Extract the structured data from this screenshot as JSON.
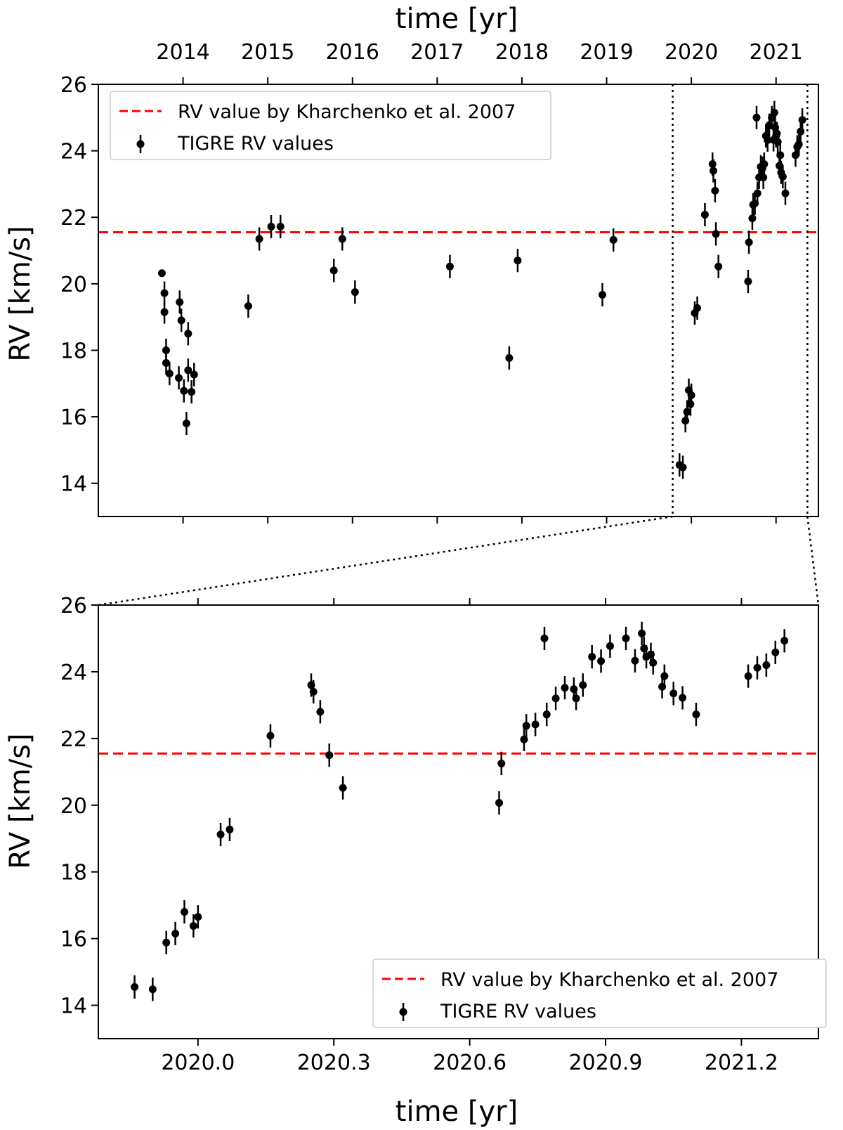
{
  "chart_data": [
    {
      "id": "top",
      "type": "scatter",
      "xlabel_top": "time [yr]",
      "ylabel": "RV [km/s]",
      "xlim": [
        2013.0,
        2021.5
      ],
      "ylim": [
        13,
        26
      ],
      "yticks": [
        14,
        16,
        18,
        20,
        22,
        24,
        26
      ],
      "xticks_top": [
        {
          "value": 2014,
          "label": "2014"
        },
        {
          "value": 2015,
          "label": "2015"
        },
        {
          "value": 2016,
          "label": "2016"
        },
        {
          "value": 2017,
          "label": "2017"
        },
        {
          "value": 2018,
          "label": "2018"
        },
        {
          "value": 2019,
          "label": "2019"
        },
        {
          "value": 2020,
          "label": "2020"
        },
        {
          "value": 2021,
          "label": "2021"
        }
      ],
      "legend_position": "upper-left",
      "reference_line": {
        "name": "RV value by Kharchenko et al. 2007",
        "y": 21.55,
        "color": "#ff0000",
        "style": "dashed"
      },
      "zoom_window": [
        2019.78,
        2021.37
      ],
      "series": [
        {
          "name": "TIGRE RV values",
          "color": "#000000",
          "points": [
            [
              2013.75,
              20.32,
              0.1
            ],
            [
              2013.78,
              19.72,
              0.35
            ],
            [
              2013.78,
              19.15,
              0.35
            ],
            [
              2013.8,
              18.0,
              0.35
            ],
            [
              2013.8,
              17.62,
              0.35
            ],
            [
              2013.84,
              17.3,
              0.35
            ],
            [
              2013.95,
              17.17,
              0.35
            ],
            [
              2013.96,
              19.45,
              0.35
            ],
            [
              2013.98,
              18.9,
              0.35
            ],
            [
              2014.01,
              16.78,
              0.35
            ],
            [
              2014.04,
              15.8,
              0.35
            ],
            [
              2014.06,
              18.5,
              0.35
            ],
            [
              2014.06,
              17.4,
              0.35
            ],
            [
              2014.1,
              16.75,
              0.35
            ],
            [
              2014.13,
              17.27,
              0.35
            ],
            [
              2014.77,
              19.33,
              0.35
            ],
            [
              2014.9,
              21.35,
              0.35
            ],
            [
              2015.04,
              21.72,
              0.35
            ],
            [
              2015.15,
              21.72,
              0.35
            ],
            [
              2015.78,
              20.4,
              0.35
            ],
            [
              2015.88,
              21.35,
              0.35
            ],
            [
              2016.03,
              19.75,
              0.35
            ],
            [
              2017.15,
              20.52,
              0.35
            ],
            [
              2017.85,
              17.77,
              0.35
            ],
            [
              2017.95,
              20.7,
              0.35
            ],
            [
              2018.95,
              19.67,
              0.35
            ],
            [
              2019.08,
              21.32,
              0.35
            ],
            [
              2019.86,
              14.55,
              0.35
            ],
            [
              2019.9,
              14.48,
              0.35
            ],
            [
              2019.93,
              15.88,
              0.35
            ],
            [
              2019.95,
              16.15,
              0.35
            ],
            [
              2019.97,
              16.8,
              0.35
            ],
            [
              2019.99,
              16.38,
              0.35
            ],
            [
              2020.0,
              16.65,
              0.35
            ],
            [
              2020.04,
              19.12,
              0.35
            ],
            [
              2020.07,
              19.27,
              0.35
            ],
            [
              2020.16,
              22.08,
              0.35
            ],
            [
              2020.25,
              23.6,
              0.35
            ],
            [
              2020.26,
              23.4,
              0.35
            ],
            [
              2020.28,
              22.8,
              0.35
            ],
            [
              2020.29,
              21.5,
              0.35
            ],
            [
              2020.32,
              20.52,
              0.35
            ],
            [
              2020.67,
              20.07,
              0.35
            ],
            [
              2020.68,
              21.25,
              0.35
            ],
            [
              2020.72,
              21.97,
              0.35
            ],
            [
              2020.73,
              22.38,
              0.35
            ],
            [
              2020.75,
              22.42,
              0.35
            ],
            [
              2020.77,
              25.0,
              0.35
            ],
            [
              2020.78,
              22.72,
              0.35
            ],
            [
              2020.8,
              23.2,
              0.35
            ],
            [
              2020.82,
              23.52,
              0.35
            ],
            [
              2020.84,
              23.48,
              0.35
            ],
            [
              2020.85,
              23.2,
              0.35
            ],
            [
              2020.86,
              23.6,
              0.35
            ],
            [
              2020.88,
              24.45,
              0.35
            ],
            [
              2020.9,
              24.32,
              0.35
            ],
            [
              2020.92,
              24.77,
              0.35
            ],
            [
              2020.95,
              25.0,
              0.35
            ],
            [
              2020.97,
              24.33,
              0.35
            ],
            [
              2020.98,
              25.15,
              0.35
            ],
            [
              2020.99,
              24.7,
              0.35
            ],
            [
              2021.0,
              24.45,
              0.35
            ],
            [
              2021.01,
              24.52,
              0.35
            ],
            [
              2021.02,
              24.27,
              0.35
            ],
            [
              2021.04,
              23.55,
              0.35
            ],
            [
              2021.05,
              23.87,
              0.35
            ],
            [
              2021.06,
              23.35,
              0.35
            ],
            [
              2021.08,
              23.22,
              0.35
            ],
            [
              2021.11,
              22.72,
              0.35
            ],
            [
              2021.23,
              23.87,
              0.35
            ],
            [
              2021.25,
              24.12,
              0.35
            ],
            [
              2021.27,
              24.2,
              0.35
            ],
            [
              2021.29,
              24.58,
              0.35
            ],
            [
              2021.31,
              24.93,
              0.35
            ]
          ]
        }
      ]
    },
    {
      "id": "bottom",
      "type": "scatter",
      "xlabel": "time [yr]",
      "ylabel": "RV [km/s]",
      "xlim": [
        2019.78,
        2021.37
      ],
      "ylim": [
        13,
        26
      ],
      "yticks": [
        14,
        16,
        18,
        20,
        22,
        24,
        26
      ],
      "xticks": [
        {
          "value": 2020.0,
          "label": "2020.0"
        },
        {
          "value": 2020.3,
          "label": "2020.3"
        },
        {
          "value": 2020.6,
          "label": "2020.6"
        },
        {
          "value": 2020.9,
          "label": "2020.9"
        },
        {
          "value": 2021.2,
          "label": "2021.2"
        }
      ],
      "legend_position": "lower-right",
      "reference_line": {
        "name": "RV value by Kharchenko et al. 2007",
        "y": 21.55,
        "color": "#ff0000",
        "style": "dashed"
      },
      "series": [
        {
          "name": "TIGRE RV values",
          "color": "#000000",
          "points": [
            [
              2019.86,
              14.55,
              0.35
            ],
            [
              2019.9,
              14.48,
              0.35
            ],
            [
              2019.93,
              15.88,
              0.35
            ],
            [
              2019.95,
              16.15,
              0.35
            ],
            [
              2019.97,
              16.8,
              0.35
            ],
            [
              2019.99,
              16.38,
              0.35
            ],
            [
              2020.0,
              16.65,
              0.35
            ],
            [
              2020.05,
              19.12,
              0.35
            ],
            [
              2020.07,
              19.27,
              0.35
            ],
            [
              2020.16,
              22.08,
              0.35
            ],
            [
              2020.25,
              23.6,
              0.35
            ],
            [
              2020.255,
              23.4,
              0.35
            ],
            [
              2020.27,
              22.8,
              0.35
            ],
            [
              2020.29,
              21.5,
              0.35
            ],
            [
              2020.32,
              20.52,
              0.35
            ],
            [
              2020.665,
              20.07,
              0.35
            ],
            [
              2020.67,
              21.25,
              0.35
            ],
            [
              2020.72,
              21.97,
              0.35
            ],
            [
              2020.725,
              22.38,
              0.35
            ],
            [
              2020.745,
              22.42,
              0.35
            ],
            [
              2020.765,
              25.0,
              0.35
            ],
            [
              2020.77,
              22.72,
              0.35
            ],
            [
              2020.79,
              23.2,
              0.35
            ],
            [
              2020.81,
              23.52,
              0.35
            ],
            [
              2020.83,
              23.48,
              0.35
            ],
            [
              2020.835,
              23.2,
              0.35
            ],
            [
              2020.85,
              23.6,
              0.35
            ],
            [
              2020.87,
              24.45,
              0.35
            ],
            [
              2020.89,
              24.32,
              0.35
            ],
            [
              2020.91,
              24.77,
              0.35
            ],
            [
              2020.945,
              25.0,
              0.35
            ],
            [
              2020.965,
              24.33,
              0.35
            ],
            [
              2020.98,
              25.15,
              0.35
            ],
            [
              2020.985,
              24.7,
              0.35
            ],
            [
              2020.99,
              24.45,
              0.35
            ],
            [
              2021.0,
              24.52,
              0.35
            ],
            [
              2021.005,
              24.27,
              0.35
            ],
            [
              2021.025,
              23.55,
              0.35
            ],
            [
              2021.03,
              23.87,
              0.35
            ],
            [
              2021.05,
              23.35,
              0.35
            ],
            [
              2021.07,
              23.22,
              0.35
            ],
            [
              2021.1,
              22.72,
              0.35
            ],
            [
              2021.215,
              23.87,
              0.35
            ],
            [
              2021.235,
              24.12,
              0.35
            ],
            [
              2021.255,
              24.2,
              0.35
            ],
            [
              2021.275,
              24.58,
              0.35
            ],
            [
              2021.295,
              24.93,
              0.35
            ]
          ]
        }
      ]
    }
  ]
}
